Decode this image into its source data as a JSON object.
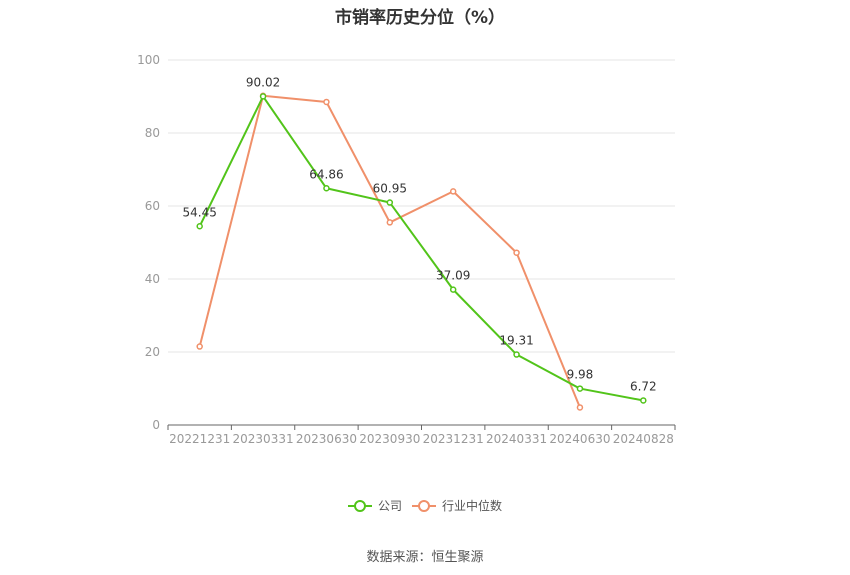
{
  "title": "市销率历史分位（%）",
  "source": "数据来源：恒生聚源",
  "colors": {
    "company": "#52c41a",
    "industry": "#f0906a"
  },
  "chart_data": {
    "type": "line",
    "title": "市销率历史分位（%）",
    "categories": [
      "20221231",
      "20230331",
      "20230630",
      "20230930",
      "20231231",
      "20240331",
      "20240630",
      "20240828"
    ],
    "ylim": [
      0,
      100
    ],
    "yticks": [
      0,
      20,
      40,
      60,
      80,
      100
    ],
    "grid": true,
    "legend": "bottom",
    "series": [
      {
        "name": "公司",
        "values": [
          54.45,
          90.02,
          64.86,
          60.95,
          37.09,
          19.31,
          9.98,
          6.72
        ],
        "labels": [
          "54.45",
          "90.02",
          "64.86",
          "60.95",
          "37.09",
          "19.31",
          "9.98",
          "6.72"
        ]
      },
      {
        "name": "行业中位数",
        "values": [
          21.5,
          90.2,
          88.5,
          55.5,
          64.0,
          47.2,
          4.8,
          null
        ]
      }
    ]
  }
}
